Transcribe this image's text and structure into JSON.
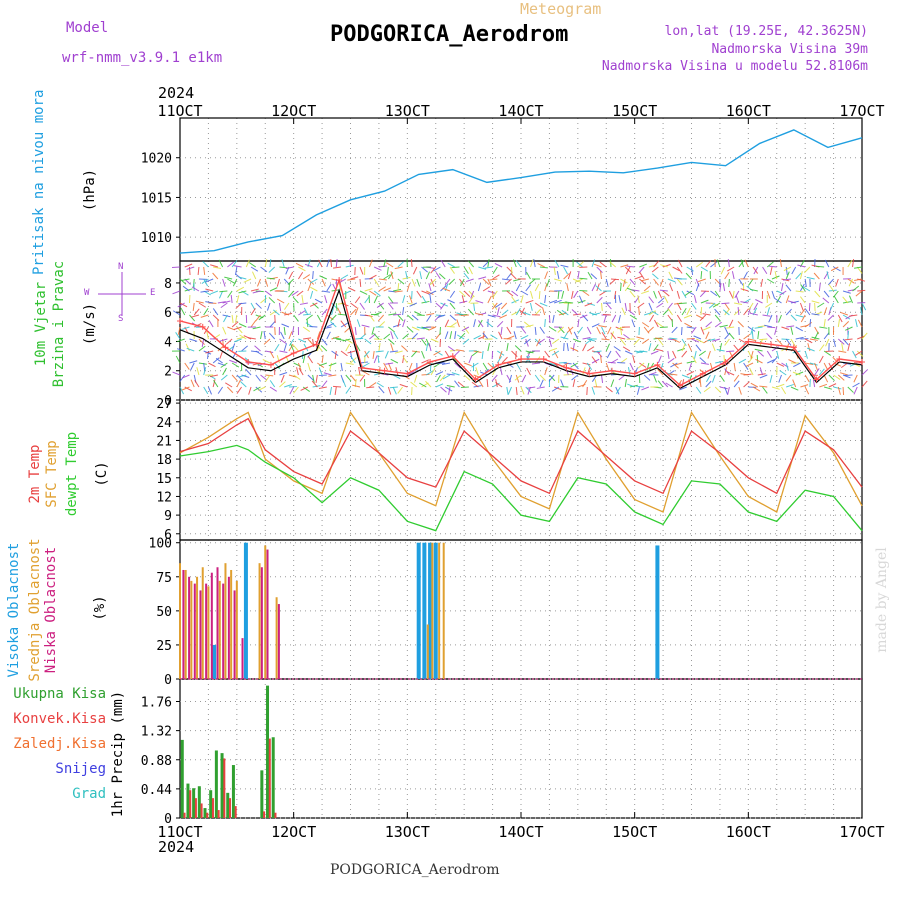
{
  "header": {
    "title": "PODGORICA_Aerodrom",
    "subtitle": "Meteogram",
    "model_label": "Model",
    "model_name": "wrf-nmm_v3.9.1  e1km",
    "lonlat": "lon,lat (19.25E, 42.3625N)",
    "altitude": "Nadmorska Visina 39m",
    "model_altitude": "Nadmorska Visina u modelu 52.8106m",
    "footer": "PODGORICA_Aerodrom",
    "watermark": "made by Angel"
  },
  "colors": {
    "pressure": "#1f9fe0",
    "t2m": "#e84040",
    "tsfc": "#e0a030",
    "dewpt": "#30cc30",
    "wind_speed": "#000000",
    "wind_gust": "#ff5050",
    "cloud_high": "#1f9fe0",
    "cloud_mid": "#e0a030",
    "cloud_low": "#cc2080",
    "precip_total": "#30a030",
    "precip_conv": "#e84040",
    "precip_frz": "#f07030",
    "precip_snow": "#4040e0",
    "precip_grad": "#30c0c0",
    "purple": "#a040d0"
  },
  "time_axis": {
    "year_top": "2024",
    "year_bottom": "2024",
    "ticks": [
      "11OCT",
      "12OCT",
      "13OCT",
      "14OCT",
      "15OCT",
      "16OCT",
      "17OCT"
    ],
    "day_range": [
      11,
      17
    ]
  },
  "legends": {
    "pressure": [
      "Pritisak na nivou mora",
      "(hPa)"
    ],
    "wind": [
      "10m Vjetar",
      "Brzina i Pravac",
      "(m/s)"
    ],
    "compass": [
      "N",
      "E",
      "S",
      "W"
    ],
    "temp": [
      "2m Temp",
      "SFC Temp",
      "dewpt Temp",
      "(C)"
    ],
    "cloud": [
      "Visoka Oblacnost",
      "Srednja Oblacnost",
      "Niska Oblacnost",
      "(%)"
    ],
    "precip": [
      "Ukupna Kisa",
      "Konvek.Kisa",
      "Zaledj.Kisa",
      "Snijeg",
      "Grad",
      "1hr Precip (mm)"
    ]
  },
  "chart_data": [
    {
      "type": "line",
      "panel": "pressure",
      "ylabel": "(hPa)",
      "yticks": [
        "1010",
        "1015",
        "1020"
      ],
      "ylim": [
        1007,
        1025
      ],
      "x": [
        11.0,
        11.3,
        11.6,
        11.9,
        12.2,
        12.5,
        12.8,
        13.1,
        13.4,
        13.7,
        14.0,
        14.3,
        14.6,
        14.9,
        15.2,
        15.5,
        15.8,
        16.1,
        16.4,
        16.7,
        17.0
      ],
      "series": [
        {
          "name": "Pritisak na nivou mora",
          "values": [
            1008,
            1008.3,
            1009.4,
            1010.2,
            1012.8,
            1014.7,
            1015.8,
            1017.9,
            1018.5,
            1016.9,
            1017.5,
            1018.2,
            1018.3,
            1018.1,
            1018.7,
            1019.4,
            1019.0,
            1021.8,
            1023.5,
            1021.3,
            1022.5
          ]
        }
      ]
    },
    {
      "type": "line",
      "panel": "wind",
      "ylabel": "(m/s)",
      "yticks": [
        "0",
        "2",
        "4",
        "6",
        "8"
      ],
      "ylim": [
        0,
        9.5
      ],
      "x": [
        11.0,
        11.2,
        11.4,
        11.6,
        11.8,
        12.0,
        12.2,
        12.4,
        12.6,
        12.8,
        13.0,
        13.2,
        13.4,
        13.6,
        13.8,
        14.0,
        14.2,
        14.4,
        14.6,
        14.8,
        15.0,
        15.2,
        15.4,
        15.6,
        15.8,
        16.0,
        16.2,
        16.4,
        16.6,
        16.8,
        17.0
      ],
      "series": [
        {
          "name": "speed",
          "values": [
            4.8,
            4.2,
            3.2,
            2.2,
            2.0,
            2.8,
            3.4,
            7.5,
            2.0,
            1.8,
            1.6,
            2.4,
            2.8,
            1.2,
            2.2,
            2.6,
            2.6,
            2.0,
            1.6,
            1.8,
            1.6,
            2.2,
            0.8,
            1.6,
            2.4,
            3.8,
            3.6,
            3.4,
            1.2,
            2.6,
            2.4
          ]
        },
        {
          "name": "gust",
          "values": [
            5.4,
            5.0,
            3.6,
            2.6,
            2.4,
            3.2,
            3.8,
            8.2,
            2.2,
            2.0,
            1.8,
            2.6,
            3.0,
            1.4,
            2.4,
            2.8,
            2.8,
            2.2,
            1.8,
            2.0,
            1.8,
            2.4,
            1.0,
            1.8,
            2.6,
            4.0,
            3.8,
            3.6,
            1.4,
            2.8,
            2.6
          ]
        }
      ]
    },
    {
      "type": "line",
      "panel": "temperature",
      "ylabel": "(C)",
      "yticks": [
        "6",
        "9",
        "12",
        "15",
        "18",
        "21",
        "24",
        "27"
      ],
      "ylim": [
        5,
        27.5
      ],
      "x": [
        11.0,
        11.25,
        11.5,
        11.6,
        11.75,
        12.0,
        12.25,
        12.5,
        12.75,
        13.0,
        13.25,
        13.5,
        13.75,
        14.0,
        14.25,
        14.5,
        14.75,
        15.0,
        15.25,
        15.5,
        15.75,
        16.0,
        16.25,
        16.5,
        16.75,
        17.0
      ],
      "series": [
        {
          "name": "2m Temp",
          "values": [
            19.2,
            20.5,
            23.5,
            24.5,
            19.5,
            16.0,
            14.0,
            22.5,
            19.0,
            15.0,
            13.5,
            22.5,
            18.5,
            14.5,
            12.5,
            22.5,
            18.5,
            14.5,
            12.5,
            22.5,
            19.0,
            15.0,
            12.5,
            22.5,
            19.5,
            13.5
          ]
        },
        {
          "name": "SFC Temp",
          "values": [
            19.0,
            21.5,
            24.5,
            25.5,
            18.0,
            14.5,
            12.5,
            25.5,
            19.0,
            12.5,
            10.5,
            25.5,
            18.0,
            12.0,
            10.0,
            25.5,
            18.0,
            11.5,
            9.5,
            25.5,
            18.5,
            12.0,
            9.5,
            25.0,
            19.0,
            10.5
          ]
        },
        {
          "name": "dewpt Temp",
          "values": [
            18.5,
            19.2,
            20.2,
            19.5,
            17.5,
            15.0,
            11.0,
            15.0,
            13.0,
            8.0,
            6.5,
            16.0,
            14.0,
            9.0,
            8.0,
            15.0,
            14.0,
            9.5,
            7.5,
            14.5,
            14.0,
            9.5,
            8.0,
            13.0,
            12.0,
            6.5
          ]
        }
      ]
    },
    {
      "type": "bar",
      "panel": "cloud",
      "ylabel": "(%)",
      "yticks": [
        "0",
        "25",
        "50",
        "75",
        "100"
      ],
      "ylim": [
        0,
        102
      ],
      "series": [
        {
          "name": "Visoka Oblacnost",
          "x": [
            11.3,
            11.58,
            13.1,
            13.15,
            13.2,
            13.25,
            15.2
          ],
          "values": [
            25,
            100,
            100,
            100,
            100,
            100,
            98
          ]
        },
        {
          "name": "Srednja Oblacnost",
          "x": [
            11.0,
            11.05,
            11.1,
            11.15,
            11.2,
            11.25,
            11.35,
            11.4,
            11.45,
            11.5,
            11.7,
            11.75,
            11.85,
            13.18,
            13.22,
            13.28,
            13.32
          ],
          "values": [
            85,
            80,
            72,
            75,
            82,
            68,
            72,
            85,
            80,
            72,
            85,
            98,
            60,
            40,
            100,
            100,
            100
          ]
        },
        {
          "name": "Niska Oblacnost",
          "x": [
            11.03,
            11.08,
            11.13,
            11.18,
            11.23,
            11.28,
            11.33,
            11.38,
            11.43,
            11.48,
            11.55,
            11.72,
            11.77,
            11.87
          ],
          "values": [
            80,
            75,
            70,
            65,
            70,
            78,
            82,
            70,
            75,
            65,
            30,
            82,
            95,
            55
          ]
        }
      ]
    },
    {
      "type": "bar",
      "panel": "precip",
      "ylabel": "1hr Precip (mm)",
      "yticks": [
        "0",
        "0.44",
        "0.88",
        "1.32",
        "1.76"
      ],
      "ylim": [
        0,
        2.1
      ],
      "series": [
        {
          "name": "Ukupna Kisa",
          "x": [
            11.02,
            11.07,
            11.12,
            11.17,
            11.22,
            11.27,
            11.32,
            11.37,
            11.42,
            11.47,
            11.72,
            11.77,
            11.82
          ],
          "values": [
            1.18,
            0.52,
            0.45,
            0.48,
            0.15,
            0.42,
            1.02,
            0.98,
            0.38,
            0.8,
            0.72,
            2.0,
            1.22
          ]
        },
        {
          "name": "Konvek.Kisa",
          "x": [
            11.04,
            11.09,
            11.14,
            11.19,
            11.24,
            11.29,
            11.34,
            11.39,
            11.44,
            11.49,
            11.74,
            11.79,
            11.84
          ],
          "values": [
            0.08,
            0.42,
            0.3,
            0.22,
            0.08,
            0.3,
            0.12,
            0.9,
            0.3,
            0.18,
            0.1,
            1.2,
            0.08
          ]
        }
      ]
    }
  ]
}
